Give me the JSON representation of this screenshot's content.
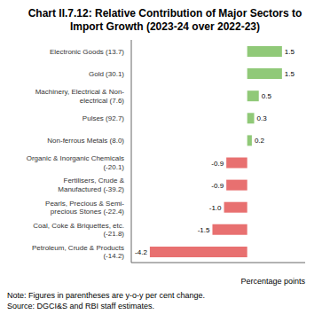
{
  "chart_data": {
    "type": "bar",
    "orientation": "horizontal",
    "title": "Chart II.7.12: Relative Contribution of Major Sectors to\nImport Growth (2023-24 over 2022-23)",
    "categories": [
      "Electronic Goods (13.7)",
      "Gold (30.1)",
      "Machinery, Electrical & Non-\nelectrical (7.6)",
      "Pulses (92.7)",
      "Non-ferrous Metals (8.0)",
      "Organic & Inorganic Chemicals\n(-20.1)",
      "Fertilisers, Crude &\nManufactured (-39.2)",
      "Pearls, Precious & Semi-\nprecious Stones (-22.4)",
      "Coal, Coke & Briquettes, etc.\n(-21.8)",
      "Petroleum, Crude & Products\n(-14.2)"
    ],
    "values": [
      1.5,
      1.5,
      0.5,
      0.3,
      0.2,
      -0.9,
      -0.9,
      -1.0,
      -1.5,
      -4.2
    ],
    "value_labels": [
      "1.5",
      "1.5",
      "0.5",
      "0.3",
      "0.2",
      "-0.9",
      "-0.9",
      "-1.0",
      "-1.5",
      "-4.2"
    ],
    "colors": [
      "#90c978",
      "#90c978",
      "#90c978",
      "#90c978",
      "#90c978",
      "#e87070",
      "#e87070",
      "#e87070",
      "#e87070",
      "#e87070"
    ],
    "xlabel": "Percentage points",
    "xlim": [
      -5.0,
      2.5
    ],
    "data_labels": true,
    "tick_labels": "y",
    "grid": false,
    "annotations": [
      "Note: Figures in parentheses are y-o-y per cent change.\nSource: DGCI&S and RBI staff estimates."
    ]
  }
}
